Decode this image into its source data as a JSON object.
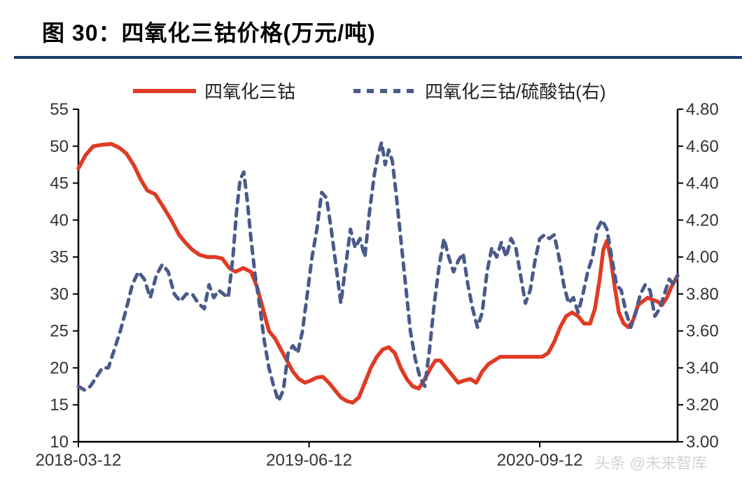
{
  "title": "图 30：四氧化三钴价格(万元/吨)",
  "watermark": "头条 @未来智库",
  "chart": {
    "type": "line",
    "plot_bg": "#ffffff",
    "axis_color": "#000000",
    "axis_fontsize": 24,
    "axis_fontcolor": "#333333",
    "legend_fontsize": 26,
    "legend_fontcolor": "#222222",
    "left_axis": {
      "min": 10,
      "max": 55,
      "step": 5,
      "ticks": [
        10,
        15,
        20,
        25,
        30,
        35,
        40,
        45,
        50,
        55
      ]
    },
    "right_axis": {
      "min": 3.0,
      "max": 4.8,
      "step": 0.2,
      "ticks": [
        "3.00",
        "3.20",
        "3.40",
        "3.60",
        "3.80",
        "4.00",
        "4.20",
        "4.40",
        "4.60",
        "4.80"
      ]
    },
    "x_axis": {
      "labels": [
        "2018-03-12",
        "2019-06-12",
        "2020-09-12"
      ],
      "positions": [
        0,
        0.385,
        0.77
      ]
    },
    "series": [
      {
        "name": "四氧化三钴",
        "axis": "left",
        "color": "#e03b24",
        "width": 5.5,
        "dash": "none",
        "data": [
          [
            0.0,
            47.0
          ],
          [
            0.012,
            48.8
          ],
          [
            0.025,
            50.0
          ],
          [
            0.04,
            50.2
          ],
          [
            0.055,
            50.3
          ],
          [
            0.068,
            49.8
          ],
          [
            0.08,
            49.0
          ],
          [
            0.092,
            47.5
          ],
          [
            0.104,
            45.5
          ],
          [
            0.115,
            44.0
          ],
          [
            0.128,
            43.5
          ],
          [
            0.14,
            42.0
          ],
          [
            0.155,
            40.0
          ],
          [
            0.168,
            38.0
          ],
          [
            0.178,
            37.0
          ],
          [
            0.19,
            36.0
          ],
          [
            0.202,
            35.3
          ],
          [
            0.215,
            35.0
          ],
          [
            0.228,
            35.0
          ],
          [
            0.24,
            34.8
          ],
          [
            0.252,
            33.5
          ],
          [
            0.262,
            33.0
          ],
          [
            0.275,
            33.5
          ],
          [
            0.288,
            33.0
          ],
          [
            0.298,
            31.0
          ],
          [
            0.308,
            28.0
          ],
          [
            0.318,
            25.0
          ],
          [
            0.328,
            24.0
          ],
          [
            0.338,
            22.5
          ],
          [
            0.348,
            21.0
          ],
          [
            0.358,
            19.5
          ],
          [
            0.368,
            18.5
          ],
          [
            0.378,
            18.0
          ],
          [
            0.388,
            18.3
          ],
          [
            0.398,
            18.7
          ],
          [
            0.408,
            18.8
          ],
          [
            0.418,
            18.0
          ],
          [
            0.428,
            17.0
          ],
          [
            0.438,
            16.0
          ],
          [
            0.448,
            15.5
          ],
          [
            0.458,
            15.3
          ],
          [
            0.468,
            16.0
          ],
          [
            0.478,
            18.0
          ],
          [
            0.488,
            20.0
          ],
          [
            0.498,
            21.5
          ],
          [
            0.508,
            22.5
          ],
          [
            0.518,
            22.8
          ],
          [
            0.528,
            22.0
          ],
          [
            0.538,
            20.0
          ],
          [
            0.548,
            18.5
          ],
          [
            0.558,
            17.5
          ],
          [
            0.568,
            17.2
          ],
          [
            0.578,
            18.5
          ],
          [
            0.588,
            20.0
          ],
          [
            0.596,
            21.0
          ],
          [
            0.604,
            21.0
          ],
          [
            0.614,
            20.0
          ],
          [
            0.624,
            19.0
          ],
          [
            0.634,
            18.0
          ],
          [
            0.644,
            18.3
          ],
          [
            0.654,
            18.5
          ],
          [
            0.664,
            18.0
          ],
          [
            0.674,
            19.5
          ],
          [
            0.684,
            20.5
          ],
          [
            0.694,
            21.0
          ],
          [
            0.704,
            21.5
          ],
          [
            0.714,
            21.5
          ],
          [
            0.724,
            21.5
          ],
          [
            0.734,
            21.5
          ],
          [
            0.744,
            21.5
          ],
          [
            0.754,
            21.5
          ],
          [
            0.764,
            21.5
          ],
          [
            0.774,
            21.5
          ],
          [
            0.784,
            22.0
          ],
          [
            0.794,
            23.5
          ],
          [
            0.804,
            25.5
          ],
          [
            0.814,
            27.0
          ],
          [
            0.824,
            27.5
          ],
          [
            0.834,
            27.0
          ],
          [
            0.844,
            26.0
          ],
          [
            0.854,
            26.0
          ],
          [
            0.862,
            28.0
          ],
          [
            0.87,
            32.0
          ],
          [
            0.876,
            36.0
          ],
          [
            0.882,
            37.2
          ],
          [
            0.888,
            35.0
          ],
          [
            0.895,
            31.0
          ],
          [
            0.902,
            27.5
          ],
          [
            0.91,
            26.0
          ],
          [
            0.918,
            25.5
          ],
          [
            0.926,
            26.5
          ],
          [
            0.934,
            28.5
          ],
          [
            0.942,
            29.0
          ],
          [
            0.95,
            29.5
          ],
          [
            0.958,
            29.2
          ],
          [
            0.966,
            29.0
          ],
          [
            0.974,
            28.5
          ],
          [
            0.982,
            29.5
          ],
          [
            0.99,
            31.0
          ],
          [
            1.0,
            32.5
          ]
        ]
      },
      {
        "name": "四氧化三钴/硫酸钴(右)",
        "axis": "right",
        "color": "#4a5a8a",
        "width": 5,
        "dash": "10,9",
        "data": [
          [
            0.0,
            3.3
          ],
          [
            0.01,
            3.28
          ],
          [
            0.02,
            3.3
          ],
          [
            0.03,
            3.35
          ],
          [
            0.04,
            3.4
          ],
          [
            0.05,
            3.4
          ],
          [
            0.06,
            3.5
          ],
          [
            0.07,
            3.6
          ],
          [
            0.08,
            3.72
          ],
          [
            0.09,
            3.85
          ],
          [
            0.1,
            3.92
          ],
          [
            0.11,
            3.88
          ],
          [
            0.12,
            3.78
          ],
          [
            0.13,
            3.9
          ],
          [
            0.14,
            3.96
          ],
          [
            0.15,
            3.92
          ],
          [
            0.16,
            3.8
          ],
          [
            0.17,
            3.76
          ],
          [
            0.18,
            3.8
          ],
          [
            0.19,
            3.8
          ],
          [
            0.2,
            3.75
          ],
          [
            0.21,
            3.72
          ],
          [
            0.218,
            3.85
          ],
          [
            0.226,
            3.78
          ],
          [
            0.234,
            3.82
          ],
          [
            0.242,
            3.8
          ],
          [
            0.25,
            3.78
          ],
          [
            0.258,
            4.0
          ],
          [
            0.264,
            4.25
          ],
          [
            0.27,
            4.42
          ],
          [
            0.276,
            4.46
          ],
          [
            0.282,
            4.3
          ],
          [
            0.288,
            4.1
          ],
          [
            0.295,
            3.9
          ],
          [
            0.302,
            3.75
          ],
          [
            0.31,
            3.55
          ],
          [
            0.318,
            3.4
          ],
          [
            0.326,
            3.3
          ],
          [
            0.334,
            3.22
          ],
          [
            0.342,
            3.28
          ],
          [
            0.35,
            3.48
          ],
          [
            0.358,
            3.52
          ],
          [
            0.366,
            3.48
          ],
          [
            0.374,
            3.6
          ],
          [
            0.382,
            3.8
          ],
          [
            0.39,
            4.0
          ],
          [
            0.398,
            4.15
          ],
          [
            0.406,
            4.35
          ],
          [
            0.414,
            4.32
          ],
          [
            0.422,
            4.15
          ],
          [
            0.43,
            3.95
          ],
          [
            0.438,
            3.75
          ],
          [
            0.446,
            3.95
          ],
          [
            0.454,
            4.15
          ],
          [
            0.462,
            4.05
          ],
          [
            0.47,
            4.1
          ],
          [
            0.478,
            4.0
          ],
          [
            0.486,
            4.25
          ],
          [
            0.494,
            4.45
          ],
          [
            0.5,
            4.55
          ],
          [
            0.506,
            4.62
          ],
          [
            0.512,
            4.5
          ],
          [
            0.518,
            4.58
          ],
          [
            0.524,
            4.52
          ],
          [
            0.53,
            4.35
          ],
          [
            0.538,
            4.1
          ],
          [
            0.546,
            3.85
          ],
          [
            0.554,
            3.6
          ],
          [
            0.562,
            3.45
          ],
          [
            0.57,
            3.35
          ],
          [
            0.578,
            3.3
          ],
          [
            0.586,
            3.5
          ],
          [
            0.594,
            3.75
          ],
          [
            0.602,
            3.95
          ],
          [
            0.61,
            4.1
          ],
          [
            0.618,
            4.0
          ],
          [
            0.626,
            3.92
          ],
          [
            0.634,
            3.98
          ],
          [
            0.642,
            4.02
          ],
          [
            0.65,
            3.85
          ],
          [
            0.658,
            3.72
          ],
          [
            0.666,
            3.62
          ],
          [
            0.674,
            3.7
          ],
          [
            0.682,
            3.92
          ],
          [
            0.69,
            4.05
          ],
          [
            0.698,
            4.0
          ],
          [
            0.706,
            4.08
          ],
          [
            0.714,
            4.0
          ],
          [
            0.722,
            4.1
          ],
          [
            0.73,
            4.05
          ],
          [
            0.738,
            3.9
          ],
          [
            0.746,
            3.75
          ],
          [
            0.754,
            3.82
          ],
          [
            0.762,
            3.98
          ],
          [
            0.77,
            4.1
          ],
          [
            0.778,
            4.12
          ],
          [
            0.786,
            4.1
          ],
          [
            0.794,
            4.12
          ],
          [
            0.802,
            4.0
          ],
          [
            0.81,
            3.85
          ],
          [
            0.818,
            3.75
          ],
          [
            0.826,
            3.78
          ],
          [
            0.834,
            3.7
          ],
          [
            0.842,
            3.8
          ],
          [
            0.85,
            3.92
          ],
          [
            0.858,
            4.0
          ],
          [
            0.866,
            4.15
          ],
          [
            0.874,
            4.2
          ],
          [
            0.882,
            4.15
          ],
          [
            0.89,
            4.0
          ],
          [
            0.898,
            3.85
          ],
          [
            0.906,
            3.82
          ],
          [
            0.914,
            3.7
          ],
          [
            0.922,
            3.62
          ],
          [
            0.93,
            3.7
          ],
          [
            0.938,
            3.8
          ],
          [
            0.946,
            3.85
          ],
          [
            0.954,
            3.82
          ],
          [
            0.962,
            3.68
          ],
          [
            0.97,
            3.72
          ],
          [
            0.978,
            3.8
          ],
          [
            0.986,
            3.88
          ],
          [
            0.994,
            3.85
          ],
          [
            1.0,
            3.9
          ]
        ]
      }
    ]
  }
}
